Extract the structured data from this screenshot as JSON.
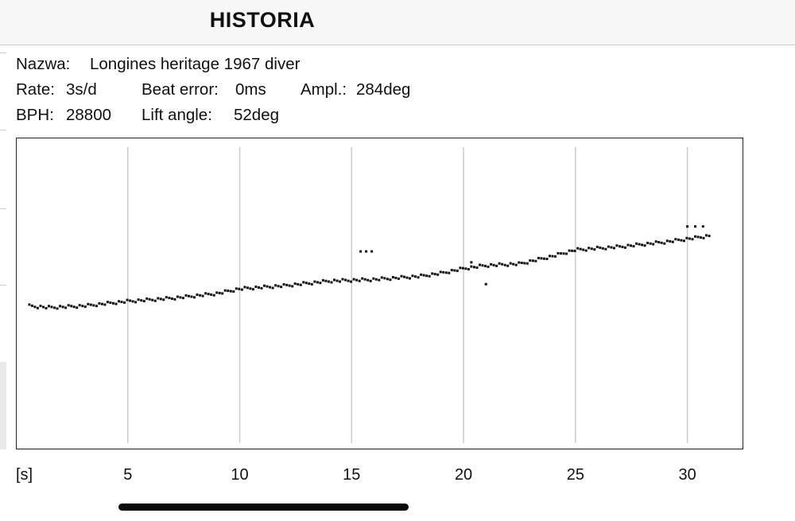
{
  "header": {
    "title": "HISTORIA"
  },
  "info": {
    "name_label": "Nazwa:",
    "name_value": "Longines heritage 1967 diver",
    "rate_label": "Rate:",
    "rate_value": "3s/d",
    "beat_error_label": "Beat error:",
    "beat_error_value": "0ms",
    "ampl_label": "Ampl.:",
    "ampl_value": "284deg",
    "bph_label": "BPH:",
    "bph_value": "28800",
    "lift_angle_label": "Lift angle:",
    "lift_angle_value": "52deg"
  },
  "chart_data": {
    "type": "scatter",
    "title": "",
    "xlabel": "[s]",
    "ylabel": "",
    "xlim": [
      0,
      32.5
    ],
    "x_ticks": [
      5,
      10,
      15,
      20,
      25,
      30
    ],
    "x_tick_labels": [
      "5",
      "10",
      "15",
      "20",
      "25",
      "30"
    ],
    "grid": "vertical",
    "trend": {
      "x": [
        0.6,
        1.5,
        3.0,
        5.0,
        7.0,
        9.0,
        10.0,
        12.0,
        14.0,
        16.0,
        18.0,
        19.0,
        20.0,
        21.0,
        22.5,
        24.0,
        25.0,
        27.0,
        29.0,
        31.0
      ],
      "y": [
        0.54,
        0.545,
        0.54,
        0.525,
        0.515,
        0.5,
        0.485,
        0.475,
        0.46,
        0.455,
        0.445,
        0.435,
        0.42,
        0.41,
        0.405,
        0.38,
        0.36,
        0.35,
        0.335,
        0.315
      ]
    },
    "outliers": [
      {
        "x": 15.4,
        "y": 0.365
      },
      {
        "x": 15.65,
        "y": 0.365
      },
      {
        "x": 15.9,
        "y": 0.365
      },
      {
        "x": 20.35,
        "y": 0.4
      },
      {
        "x": 21.0,
        "y": 0.47
      },
      {
        "x": 30.0,
        "y": 0.285
      },
      {
        "x": 30.35,
        "y": 0.285
      },
      {
        "x": 30.7,
        "y": 0.285
      }
    ],
    "point_spacing": 0.125
  }
}
